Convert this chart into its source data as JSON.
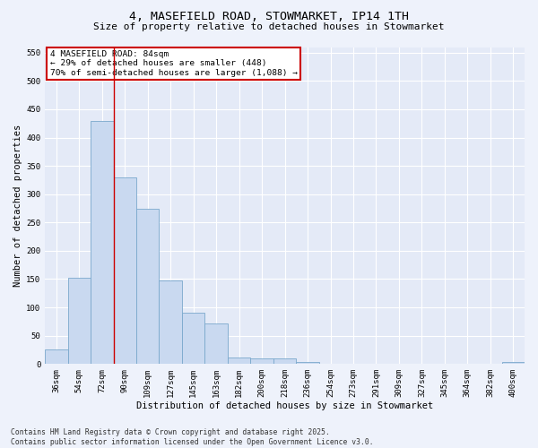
{
  "title_line1": "4, MASEFIELD ROAD, STOWMARKET, IP14 1TH",
  "title_line2": "Size of property relative to detached houses in Stowmarket",
  "xlabel": "Distribution of detached houses by size in Stowmarket",
  "ylabel": "Number of detached properties",
  "categories": [
    "36sqm",
    "54sqm",
    "72sqm",
    "90sqm",
    "109sqm",
    "127sqm",
    "145sqm",
    "163sqm",
    "182sqm",
    "200sqm",
    "218sqm",
    "236sqm",
    "254sqm",
    "273sqm",
    "291sqm",
    "309sqm",
    "327sqm",
    "345sqm",
    "364sqm",
    "382sqm",
    "400sqm"
  ],
  "bar_values": [
    25,
    153,
    430,
    330,
    275,
    148,
    90,
    72,
    12,
    10,
    10,
    3,
    0,
    0,
    0,
    0,
    0,
    0,
    0,
    0,
    3
  ],
  "bar_color": "#c9d9f0",
  "bar_edge_color": "#7aa8cc",
  "vline_x_idx": 2.5,
  "vline_color": "#cc0000",
  "annotation_text": "4 MASEFIELD ROAD: 84sqm\n← 29% of detached houses are smaller (448)\n70% of semi-detached houses are larger (1,088) →",
  "annotation_box_color": "#ffffff",
  "annotation_box_edge_color": "#cc0000",
  "ylim": [
    0,
    560
  ],
  "yticks": [
    0,
    50,
    100,
    150,
    200,
    250,
    300,
    350,
    400,
    450,
    500,
    550
  ],
  "background_color": "#eef2fb",
  "plot_bg_color": "#e4eaf7",
  "grid_color": "#ffffff",
  "footer_line1": "Contains HM Land Registry data © Crown copyright and database right 2025.",
  "footer_line2": "Contains public sector information licensed under the Open Government Licence v3.0.",
  "title_fontsize": 9.5,
  "subtitle_fontsize": 8.0,
  "axis_label_fontsize": 7.5,
  "tick_fontsize": 6.5,
  "annotation_fontsize": 6.8,
  "footer_fontsize": 5.8
}
